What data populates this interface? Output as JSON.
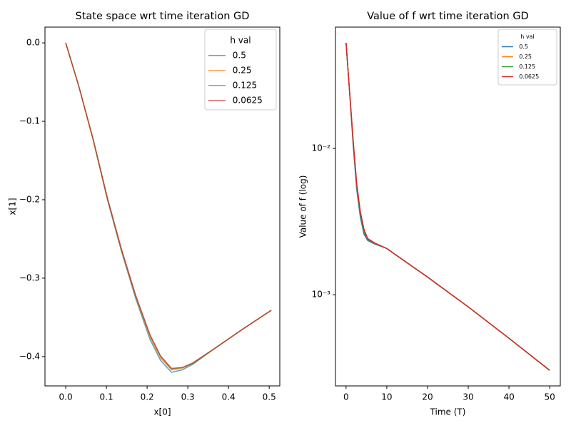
{
  "chart_data": [
    {
      "type": "line",
      "title": "State space wrt time iteration GD",
      "x_label": "x[0]",
      "y_label": "x[1]",
      "x": [
        0,
        0.032,
        0.067,
        0.102,
        0.137,
        0.172,
        0.207,
        0.233,
        0.26,
        0.286,
        0.312,
        0.365,
        0.435,
        0.505
      ],
      "series": [
        {
          "name": "0.5",
          "color": "#1f77b4",
          "values": [
            0,
            -0.055,
            -0.123,
            -0.199,
            -0.266,
            -0.326,
            -0.378,
            -0.405,
            -0.42,
            -0.417,
            -0.41,
            -0.39,
            -0.365,
            -0.341
          ]
        },
        {
          "name": "0.25",
          "color": "#ff7f0e",
          "values": [
            0,
            -0.055,
            -0.123,
            -0.198,
            -0.265,
            -0.324,
            -0.375,
            -0.402,
            -0.417,
            -0.415,
            -0.409,
            -0.39,
            -0.365,
            -0.341
          ]
        },
        {
          "name": "0.125",
          "color": "#2ca02c",
          "values": [
            0,
            -0.055,
            -0.122,
            -0.197,
            -0.264,
            -0.323,
            -0.373,
            -0.4,
            -0.416,
            -0.414,
            -0.409,
            -0.39,
            -0.365,
            -0.341
          ]
        },
        {
          "name": "0.0625",
          "color": "#d62728",
          "values": [
            0,
            -0.055,
            -0.122,
            -0.197,
            -0.263,
            -0.322,
            -0.372,
            -0.399,
            -0.415,
            -0.414,
            -0.408,
            -0.39,
            -0.365,
            -0.341
          ]
        }
      ],
      "alpha": 0.7,
      "legend_title": "h val",
      "legend": "upper right",
      "xlim": [
        -0.051,
        0.526
      ],
      "ylim": [
        -0.4374,
        0.0201
      ],
      "xticks": [
        {
          "value": 0,
          "label": "0.0"
        },
        0.1,
        0.2,
        0.3,
        0.4,
        0.5
      ],
      "yticks": [
        {
          "value": -0.4,
          "label": "−0.4"
        },
        {
          "value": -0.3,
          "label": "−0.3"
        },
        {
          "value": -0.2,
          "label": "−0.2"
        },
        {
          "value": -0.1,
          "label": "−0.1"
        },
        {
          "value": 0,
          "label": "0.0"
        }
      ]
    },
    {
      "type": "line",
      "title": "Value of f wrt time iteration GD",
      "x_label": "Time (T)",
      "y_label": "Value of f (log)",
      "x": [
        0,
        0.88,
        1.75,
        2.6,
        3.5,
        4.4,
        5.3,
        7,
        10,
        20,
        30,
        40,
        50
      ],
      "series": [
        {
          "name": "0.5",
          "color": "#1f77b4",
          "values": [
            0.0527,
            0.024,
            0.0105,
            0.0053,
            0.0034,
            0.0026,
            0.00235,
            0.00222,
            0.00207,
            0.00132,
            0.000826,
            0.000504,
            0.000304
          ]
        },
        {
          "name": "0.25",
          "color": "#ff7f0e",
          "values": [
            0.0527,
            0.024,
            0.011,
            0.0056,
            0.0036,
            0.0027,
            0.0024,
            0.00224,
            0.00207,
            0.00132,
            0.000826,
            0.000504,
            0.000304
          ]
        },
        {
          "name": "0.125",
          "color": "#2ca02c",
          "values": [
            0.0527,
            0.0242,
            0.0112,
            0.0057,
            0.0036,
            0.0027,
            0.0024,
            0.00225,
            0.00207,
            0.00132,
            0.000826,
            0.000504,
            0.000304
          ]
        },
        {
          "name": "0.0625",
          "color": "#d62728",
          "values": [
            0.0527,
            0.0243,
            0.0113,
            0.0058,
            0.0037,
            0.0028,
            0.00242,
            0.00226,
            0.00207,
            0.00132,
            0.000826,
            0.000504,
            0.000304
          ]
        }
      ],
      "alpha": 1,
      "legend_title": "h val",
      "legend": "upper right",
      "log_y": true,
      "xlim": [
        -2.6,
        52.6
      ],
      "ylim": [
        0.000238,
        0.0675
      ],
      "xticks": [
        0,
        10,
        20,
        30,
        40,
        50
      ],
      "yticks": [
        {
          "value": 0.001,
          "label": "10⁻³"
        },
        {
          "value": 0.01,
          "label": "10⁻²"
        }
      ]
    }
  ]
}
